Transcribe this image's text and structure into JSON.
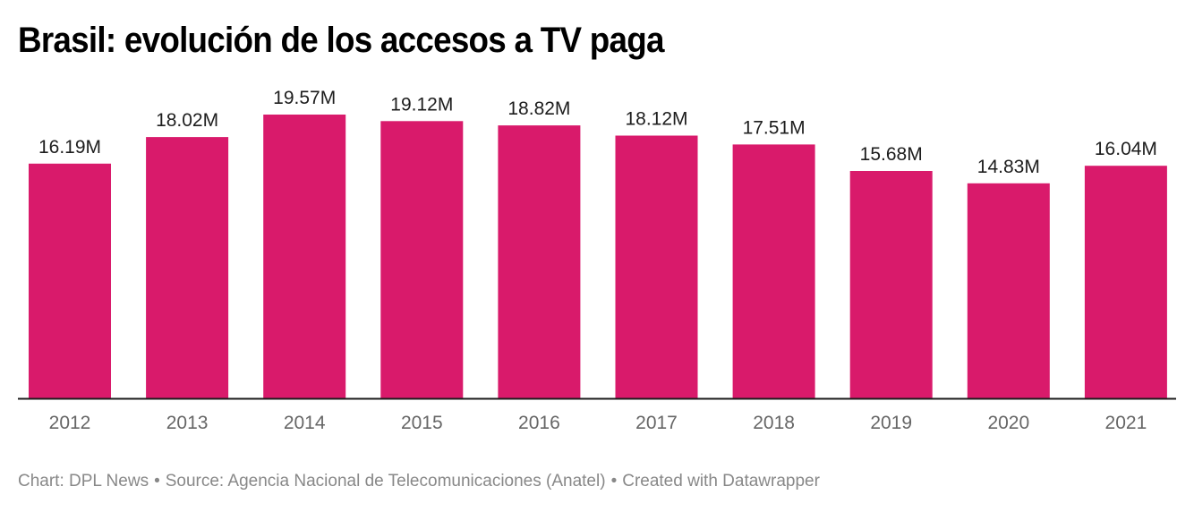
{
  "chart_data": {
    "type": "bar",
    "title": "Brasil: evolución de los accesos a TV paga",
    "xlabel": "",
    "ylabel": "",
    "categories": [
      "2012",
      "2013",
      "2014",
      "2015",
      "2016",
      "2017",
      "2018",
      "2019",
      "2020",
      "2021"
    ],
    "values": [
      16.19,
      18.02,
      19.57,
      19.12,
      18.82,
      18.12,
      17.51,
      15.68,
      14.83,
      16.04
    ],
    "value_labels": [
      "16.19M",
      "18.02M",
      "19.57M",
      "19.12M",
      "18.82M",
      "18.12M",
      "17.51M",
      "15.68M",
      "14.83M",
      "16.04M"
    ],
    "units": "millions",
    "ylim": [
      0,
      19.57
    ],
    "grid": false,
    "legend": "none",
    "bar_color": "#d91a6b",
    "axis_color": "#1d1d1d"
  },
  "footer": {
    "chart_credit": "Chart: DPL News",
    "source": "Source: Agencia Nacional de Telecomunicaciones (Anatel)",
    "created_with": "Created with Datawrapper",
    "separator": "•"
  }
}
